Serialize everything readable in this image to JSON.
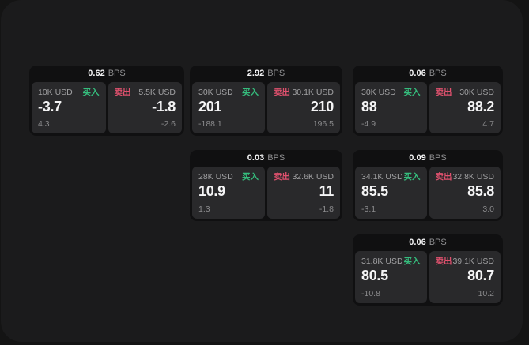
{
  "labels": {
    "bps_unit": "BPS",
    "buy": "买入",
    "sell": "卖出"
  },
  "colors": {
    "buy_green": "#35bd7d",
    "sell_red": "#e0516e",
    "window_bg": "#1b1b1c",
    "card_bg": "#101011",
    "panel_bg": "#29292b"
  },
  "cards": [
    {
      "bps": "0.62",
      "buy": {
        "volume": "10K USD",
        "price": "-3.7",
        "delta": "4.3"
      },
      "sell": {
        "volume": "5.5K USD",
        "price": "-1.8",
        "delta": "-2.6"
      }
    },
    {
      "bps": "2.92",
      "buy": {
        "volume": "30K USD",
        "price": "201",
        "delta": "-188.1"
      },
      "sell": {
        "volume": "30.1K USD",
        "price": "210",
        "delta": "196.5"
      }
    },
    {
      "bps": "0.06",
      "buy": {
        "volume": "30K USD",
        "price": "88",
        "delta": "-4.9"
      },
      "sell": {
        "volume": "30K USD",
        "price": "88.2",
        "delta": "4.7"
      }
    },
    {
      "bps": "0.03",
      "buy": {
        "volume": "28K USD",
        "price": "10.9",
        "delta": "1.3"
      },
      "sell": {
        "volume": "32.6K USD",
        "price": "11",
        "delta": "-1.8"
      }
    },
    {
      "bps": "0.09",
      "buy": {
        "volume": "34.1K USD",
        "price": "85.5",
        "delta": "-3.1"
      },
      "sell": {
        "volume": "32.8K USD",
        "price": "85.8",
        "delta": "3.0"
      }
    },
    {
      "bps": "0.06",
      "buy": {
        "volume": "31.8K USD",
        "price": "80.5",
        "delta": "-10.8"
      },
      "sell": {
        "volume": "39.1K USD",
        "price": "80.7",
        "delta": "10.2"
      }
    }
  ]
}
